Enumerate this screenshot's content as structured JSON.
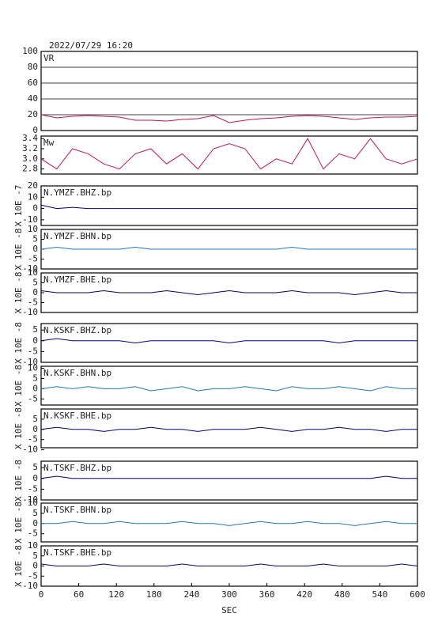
{
  "title": "2022/07/29 16:20",
  "chart_data": [
    {
      "type": "line",
      "title": "VR",
      "color": "#d0104c",
      "grid": true,
      "x": [
        0,
        25,
        50,
        75,
        100,
        125,
        150,
        175,
        200,
        225,
        250,
        275,
        300,
        325,
        350,
        375,
        400,
        425,
        450,
        475,
        500,
        525,
        550,
        575,
        600
      ],
      "values": [
        20,
        16,
        18,
        19,
        18,
        17,
        13,
        13,
        12,
        14,
        15,
        19,
        10,
        13,
        15,
        16,
        18,
        19,
        18,
        16,
        14,
        16,
        17,
        17,
        18
      ],
      "xlim": [
        0,
        600
      ],
      "ylim": [
        0,
        100
      ],
      "yticks": [
        0,
        20,
        40,
        60,
        80,
        100
      ]
    },
    {
      "type": "line",
      "title": "Mw",
      "color": "#d0104c",
      "x": [
        0,
        25,
        50,
        75,
        100,
        125,
        150,
        175,
        200,
        225,
        250,
        275,
        300,
        325,
        350,
        375,
        400,
        425,
        450,
        475,
        500,
        525,
        550,
        575,
        600
      ],
      "values": [
        3.0,
        2.8,
        3.2,
        3.1,
        2.9,
        2.8,
        3.1,
        3.2,
        2.9,
        3.1,
        2.8,
        3.2,
        3.3,
        3.2,
        2.8,
        3.0,
        2.9,
        3.4,
        2.8,
        3.1,
        3.0,
        3.4,
        3.0,
        2.9,
        3.0
      ],
      "xlim": [
        0,
        600
      ],
      "ylim": [
        2.7,
        3.45
      ],
      "yticks": [
        {
          "value": 2.8,
          "label": "2.8"
        },
        {
          "value": 3.0,
          "label": "3.0"
        },
        {
          "value": 3.2,
          "label": "3.2"
        },
        {
          "value": 3.4,
          "label": "3.4"
        }
      ]
    },
    {
      "type": "line",
      "title": "N.YMZF.BHZ.bp",
      "ylabel": "X 10E -7",
      "color": "#000080",
      "x": [
        0,
        25,
        50,
        75,
        100,
        125,
        150,
        175,
        200,
        225,
        250,
        275,
        300,
        325,
        350,
        375,
        400,
        425,
        450,
        475,
        500,
        525,
        550,
        575,
        600
      ],
      "values": [
        3,
        0,
        1,
        0,
        0,
        0,
        0,
        0,
        0,
        0,
        0,
        0,
        0,
        0,
        0,
        0,
        0,
        0,
        0,
        0,
        0,
        0,
        0,
        0,
        0
      ],
      "xlim": [
        0,
        600
      ],
      "ylim": [
        -15,
        20
      ],
      "yticks": [
        -10,
        0,
        10,
        20
      ]
    },
    {
      "type": "line",
      "title": "N.YMZF.BHN.bp",
      "ylabel": "X 10E -8",
      "color": "#1e78d0",
      "x": [
        0,
        25,
        50,
        75,
        100,
        125,
        150,
        175,
        200,
        225,
        250,
        275,
        300,
        325,
        350,
        375,
        400,
        425,
        450,
        475,
        500,
        525,
        550,
        575,
        600
      ],
      "values": [
        0,
        1,
        0,
        0,
        0,
        0,
        1,
        0,
        0,
        0,
        0,
        0,
        0,
        0,
        0,
        0,
        1,
        0,
        0,
        0,
        0,
        0,
        0,
        0,
        0
      ],
      "xlim": [
        0,
        600
      ],
      "ylim": [
        -10,
        10
      ],
      "yticks": [
        -10,
        -5,
        0,
        5,
        10
      ]
    },
    {
      "type": "line",
      "title": "N.YMZF.BHE.bp",
      "ylabel": "X 10E -8",
      "color": "#000080",
      "x": [
        0,
        25,
        50,
        75,
        100,
        125,
        150,
        175,
        200,
        225,
        250,
        275,
        300,
        325,
        350,
        375,
        400,
        425,
        450,
        475,
        500,
        525,
        550,
        575,
        600
      ],
      "values": [
        1,
        0,
        0,
        0,
        1,
        0,
        0,
        0,
        1,
        0,
        -1,
        0,
        1,
        0,
        0,
        0,
        1,
        0,
        0,
        0,
        -1,
        0,
        1,
        0,
        0
      ],
      "xlim": [
        0,
        600
      ],
      "ylim": [
        -10,
        10
      ],
      "yticks": [
        -10,
        -5,
        0,
        5,
        10
      ]
    },
    {
      "type": "line",
      "title": "N.KSKF.BHZ.bp",
      "ylabel": "X 10E -8",
      "color": "#000080",
      "x": [
        0,
        25,
        50,
        75,
        100,
        125,
        150,
        175,
        200,
        225,
        250,
        275,
        300,
        325,
        350,
        375,
        400,
        425,
        450,
        475,
        500,
        525,
        550,
        575,
        600
      ],
      "values": [
        0,
        1,
        0,
        0,
        0,
        0,
        -1,
        0,
        0,
        0,
        0,
        0,
        -1,
        0,
        0,
        0,
        0,
        0,
        0,
        -1,
        0,
        0,
        0,
        0,
        0
      ],
      "xlim": [
        0,
        600
      ],
      "ylim": [
        -10,
        8
      ],
      "yticks": [
        -10,
        -5,
        0,
        5
      ]
    },
    {
      "type": "line",
      "title": "N.KSKF.BHN.bp",
      "ylabel": "X 10E -8",
      "color": "#1e78d0",
      "x": [
        0,
        25,
        50,
        75,
        100,
        125,
        150,
        175,
        200,
        225,
        250,
        275,
        300,
        325,
        350,
        375,
        400,
        425,
        450,
        475,
        500,
        525,
        550,
        575,
        600
      ],
      "values": [
        0,
        1,
        0,
        1,
        0,
        0,
        1,
        -1,
        0,
        1,
        -1,
        0,
        0,
        1,
        0,
        -1,
        1,
        0,
        0,
        1,
        0,
        -1,
        1,
        0,
        0
      ],
      "xlim": [
        0,
        600
      ],
      "ylim": [
        -8,
        11
      ],
      "yticks": [
        -5,
        0,
        5,
        10
      ]
    },
    {
      "type": "line",
      "title": "N.KSKF.BHE.bp",
      "ylabel": "X 10E -8",
      "color": "#000080",
      "x": [
        0,
        25,
        50,
        75,
        100,
        125,
        150,
        175,
        200,
        225,
        250,
        275,
        300,
        325,
        350,
        375,
        400,
        425,
        450,
        475,
        500,
        525,
        550,
        575,
        600
      ],
      "values": [
        0,
        1,
        0,
        0,
        -1,
        0,
        0,
        1,
        0,
        0,
        -1,
        0,
        0,
        0,
        1,
        0,
        -1,
        0,
        0,
        1,
        0,
        0,
        -1,
        0,
        0
      ],
      "xlim": [
        0,
        600
      ],
      "ylim": [
        -9,
        10
      ],
      "yticks": [
        -10,
        -5,
        0,
        5
      ]
    },
    {
      "type": "line",
      "title": "N.TSKF.BHZ.bp",
      "ylabel": "X 10E -8",
      "color": "#000080",
      "x": [
        0,
        25,
        50,
        75,
        100,
        125,
        150,
        175,
        200,
        225,
        250,
        275,
        300,
        325,
        350,
        375,
        400,
        425,
        450,
        475,
        500,
        525,
        550,
        575,
        600
      ],
      "values": [
        0,
        1,
        0,
        0,
        0,
        0,
        0,
        0,
        0,
        0,
        0,
        0,
        0,
        0,
        0,
        0,
        0,
        0,
        0,
        0,
        0,
        0,
        1,
        0,
        0
      ],
      "xlim": [
        0,
        600
      ],
      "ylim": [
        -10,
        8
      ],
      "yticks": [
        -10,
        -5,
        0,
        5
      ]
    },
    {
      "type": "line",
      "title": "N.TSKF.BHN.bp",
      "ylabel": "X 10E -8",
      "color": "#1e78d0",
      "x": [
        0,
        25,
        50,
        75,
        100,
        125,
        150,
        175,
        200,
        225,
        250,
        275,
        300,
        325,
        350,
        375,
        400,
        425,
        450,
        475,
        500,
        525,
        550,
        575,
        600
      ],
      "values": [
        0,
        0,
        1,
        0,
        0,
        1,
        0,
        0,
        0,
        1,
        0,
        0,
        -1,
        0,
        1,
        0,
        0,
        1,
        0,
        0,
        -1,
        0,
        1,
        0,
        0
      ],
      "xlim": [
        0,
        600
      ],
      "ylim": [
        -9,
        10
      ],
      "yticks": [
        -5,
        0,
        5,
        10
      ]
    },
    {
      "type": "line",
      "title": "N.TSKF.BHE.bp",
      "ylabel": "X 10E -8",
      "color": "#000080",
      "x": [
        0,
        25,
        50,
        75,
        100,
        125,
        150,
        175,
        200,
        225,
        250,
        275,
        300,
        325,
        350,
        375,
        400,
        425,
        450,
        475,
        500,
        525,
        550,
        575,
        600
      ],
      "values": [
        1,
        0,
        0,
        0,
        1,
        0,
        0,
        0,
        0,
        1,
        0,
        0,
        0,
        0,
        1,
        0,
        0,
        0,
        1,
        0,
        0,
        0,
        0,
        1,
        0
      ],
      "xlim": [
        0,
        600
      ],
      "ylim": [
        -10,
        10
      ],
      "yticks": [
        -10,
        -5,
        0,
        5,
        10
      ],
      "xlabel": "SEC",
      "xticks": [
        0,
        60,
        120,
        180,
        240,
        300,
        360,
        420,
        480,
        540,
        600
      ]
    }
  ]
}
